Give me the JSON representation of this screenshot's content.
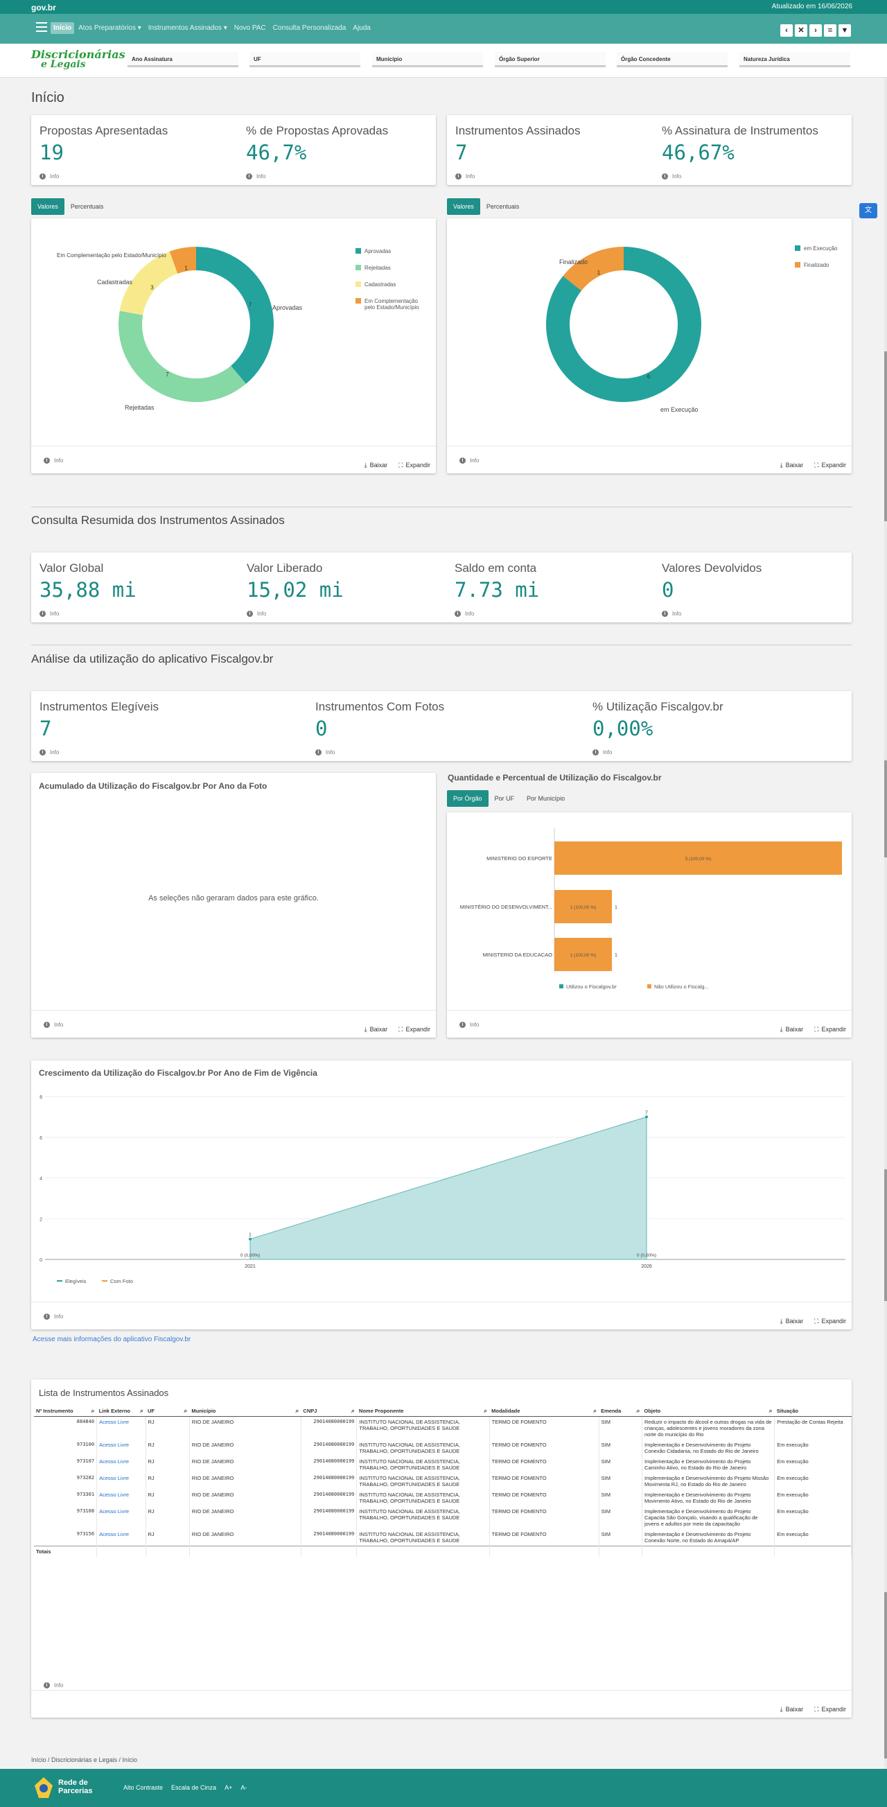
{
  "gov": {
    "logo": "gov.br",
    "updated": "Atualizado em 16/06/2026"
  },
  "nav": {
    "items": [
      "Início",
      "Atos Preparatórios ▾",
      "Instrumentos Assinados ▾",
      "Novo PAC",
      "Consulta Personalizada",
      "Ajuda"
    ],
    "buttons": [
      "‹",
      "✕",
      "›",
      "≡",
      "▼"
    ]
  },
  "brand": {
    "line1": "Discricionárias",
    "line2": "e Legais"
  },
  "filters": [
    "Ano Assinatura",
    "UF",
    "Município",
    "Órgão Superior",
    "Órgão Concedente",
    "Natureza Jurídica"
  ],
  "page_title": "Início",
  "kpi1": [
    {
      "title": "Propostas Apresentadas",
      "value": "19",
      "info": "Info"
    },
    {
      "title": "% de Propostas Aprovadas",
      "value": "46,7%",
      "info": "Info"
    }
  ],
  "kpi2": [
    {
      "title": "Instrumentos Assinados",
      "value": "7",
      "info": "Info"
    },
    {
      "title": "% Assinatura de Instrumentos",
      "value": "46,67%",
      "info": "Info"
    }
  ],
  "tabs_values": [
    "Valores",
    "Percentuais"
  ],
  "footer": {
    "info": "Info",
    "download": "Baixar",
    "expand": "Expandir"
  },
  "colors": {
    "teal": "#23a39c",
    "green": "#86d8a4",
    "yellow": "#f8ea8c",
    "orange": "#ef9a3c",
    "brand_green": "#2a9d3a",
    "header": "#168a80"
  },
  "chart_data": [
    {
      "type": "pie",
      "subtype": "donut",
      "labels": [
        "Aprovadas",
        "Rejeitadas",
        "Cadastradas",
        "Em Complementação pelo Estado/Município"
      ],
      "values": [
        7,
        7,
        3,
        1
      ],
      "legend": [
        "Aprovadas",
        "Rejeitadas",
        "Cadastradas",
        "Em Complementação pelo Estado/Município"
      ],
      "legend_position": "top-right"
    },
    {
      "type": "pie",
      "subtype": "donut",
      "labels": [
        "em Execução",
        "Finalizado"
      ],
      "values": [
        6,
        1
      ],
      "legend": [
        "em Execução",
        "Finalizado"
      ],
      "legend_position": "top-right"
    },
    {
      "type": "bar",
      "orientation": "horizontal",
      "title": "Quantidade e Percentual de Utilização do Fiscalgov.br",
      "categories": [
        "MINISTERIO DO ESPORTE",
        "MINISTÉRIO DO DESENVOLVIMENT...",
        "MINISTERIO DA EDUCACAO"
      ],
      "series": [
        {
          "name": "Utilizou o Fiscalgov.br",
          "values": [
            0,
            0,
            0
          ]
        },
        {
          "name": "Não Utilizou o Fiscalg...",
          "values": [
            5,
            1,
            1
          ],
          "labels": [
            "5 (100,00 %)",
            "1 (100,00 %)",
            "1 (100,00 %)"
          ]
        }
      ],
      "side_labels": [
        "",
        "1",
        "1"
      ],
      "legend_position": "bottom"
    },
    {
      "type": "area",
      "title": "Crescimento da Utilização do Fiscalgov.br Por Ano de Fim de Vigência",
      "x": [
        "2021",
        "2026"
      ],
      "series": [
        {
          "name": "Elegíveis",
          "values": [
            1,
            7
          ]
        },
        {
          "name": "Com Foto",
          "values": [
            0,
            0
          ],
          "labels": [
            "0 (0,00%)",
            "0 (0,00%)"
          ]
        }
      ],
      "ylim": [
        0,
        8
      ],
      "yticks": [
        "0",
        "2",
        "4",
        "6",
        "8"
      ],
      "legend_position": "bottom-left"
    }
  ],
  "donut1_labels": {
    "top": "Em Complementação pelo Estado/Município",
    "left": "Cadastradas",
    "right": "Aprovadas",
    "bottom": "Rejeitadas"
  },
  "donut2_labels": {
    "top": "Finalizado",
    "bottom": "em Execução"
  },
  "sec2": {
    "title": "Consulta Resumida dos Instrumentos Assinados",
    "kpis": [
      {
        "title": "Valor Global",
        "value": "35,88 mi",
        "info": "Info"
      },
      {
        "title": "Valor Liberado",
        "value": "15,02 mi",
        "info": "Info"
      },
      {
        "title": "Saldo em conta",
        "value": "7.73 mi",
        "info": "Info"
      },
      {
        "title": "Valores Devolvidos",
        "value": "0",
        "info": "Info"
      }
    ]
  },
  "sec3": {
    "title": "Análise da utilização do aplicativo Fiscalgov.br",
    "kpis": [
      {
        "title": "Instrumentos Elegíveis",
        "value": "7",
        "info": "Info"
      },
      {
        "title": "Instrumentos Com Fotos",
        "value": "0",
        "info": "Info"
      },
      {
        "title": "% Utilização Fiscalgov.br",
        "value": "0,00%",
        "info": "Info"
      }
    ]
  },
  "acum": {
    "title": "Acumulado da Utilização do Fiscalgov.br Por Ano da Foto",
    "empty": "As seleções não geraram dados para este gráfico."
  },
  "qty": {
    "title": "Quantidade e Percentual de Utilização do Fiscalgov.br",
    "tabs": [
      "Por Órgão",
      "Por UF",
      "Por Município"
    ]
  },
  "growth": {
    "link": "Acesse mais informações do aplicativo Fiscalgov.br"
  },
  "table": {
    "title": "Lista de Instrumentos Assinados",
    "headers": [
      "Nº Instrumento",
      "Link Externo",
      "UF",
      "Município",
      "CNPJ",
      "Nome Proponente",
      "Modalidade",
      "Emenda",
      "Objeto",
      "Situação"
    ],
    "rows": [
      [
        "884840",
        "Acesso Livre",
        "RJ",
        "RIO DE JANEIRO",
        "29014080000199",
        "INSTITUTO NACIONAL DE ASSISTENCIA, TRABALHO, OPORTUNIDADES E SAUDE",
        "TERMO DE FOMENTO",
        "SIM",
        "Reduzir o impacto do álcool e outras drogas na vida de crianças, adolescentes e jovens moradores da zona norte do município do Rio",
        "Prestação de Contas Rejeita"
      ],
      [
        "973100",
        "Acesso Livre",
        "RJ",
        "RIO DE JANEIRO",
        "29014080000199",
        "INSTITUTO NACIONAL DE ASSISTENCIA, TRABALHO, OPORTUNIDADES E SAUDE",
        "TERMO DE FOMENTO",
        "SIM",
        "Implementação e Desenvolvimento do Projeto Conexão Cidadania, no Estado do Rio de Janeiro",
        "Em execução"
      ],
      [
        "973107",
        "Acesso Livre",
        "RJ",
        "RIO DE JANEIRO",
        "29014080000199",
        "INSTITUTO NACIONAL DE ASSISTENCIA, TRABALHO, OPORTUNIDADES E SAUDE",
        "TERMO DE FOMENTO",
        "SIM",
        "Implementação e Desenvolvimento do Projeto Caminho Ativo, no Estado do Rio de Janeiro",
        "Em execução"
      ],
      [
        "973282",
        "Acesso Livre",
        "RJ",
        "RIO DE JANEIRO",
        "29014080000199",
        "INSTITUTO NACIONAL DE ASSISTENCIA, TRABALHO, OPORTUNIDADES E SAUDE",
        "TERMO DE FOMENTO",
        "SIM",
        "Implementação e Desenvolvimento do Projeto Missão Movimenta RJ, no Estado do Rio de Janeiro",
        "Em execução"
      ],
      [
        "973301",
        "Acesso Livre",
        "RJ",
        "RIO DE JANEIRO",
        "29014080000199",
        "INSTITUTO NACIONAL DE ASSISTENCIA, TRABALHO, OPORTUNIDADES E SAUDE",
        "TERMO DE FOMENTO",
        "SIM",
        "Implementação e Desenvolvimento do Projeto Movimento Ativo, no Estado do Rio de Janeiro",
        "Em execução"
      ],
      [
        "973108",
        "Acesso Livre",
        "RJ",
        "RIO DE JANEIRO",
        "29014080000199",
        "INSTITUTO NACIONAL DE ASSISTENCIA, TRABALHO, OPORTUNIDADES E SAUDE",
        "TERMO DE FOMENTO",
        "SIM",
        "Implementação e Desenvolvimento do Projeto Capacita São Gonçalo, visando a qualificação de jovens e adultos por meio da capacitação",
        "Em execução"
      ],
      [
        "973156",
        "Acesso Livre",
        "RJ",
        "RIO DE JANEIRO",
        "29014080000199",
        "INSTITUTO NACIONAL DE ASSISTENCIA, TRABALHO, OPORTUNIDADES E SAUDE",
        "TERMO DE FOMENTO",
        "SIM",
        "Implementação e Desenvolvimento do Projeto Conexão Norte, no Estado do Amapá/AP",
        "Em execução"
      ]
    ],
    "total_label": "Totais"
  },
  "breadcrumb": "Início  /  Discricionárias e Legais  /  Início",
  "bottom": {
    "brand1": "Rede de",
    "brand2": "Parcerias",
    "links": [
      "Alto Contraste",
      "Escala de Cinza",
      "A+",
      "A-"
    ]
  },
  "translate_icon": "translate-icon"
}
